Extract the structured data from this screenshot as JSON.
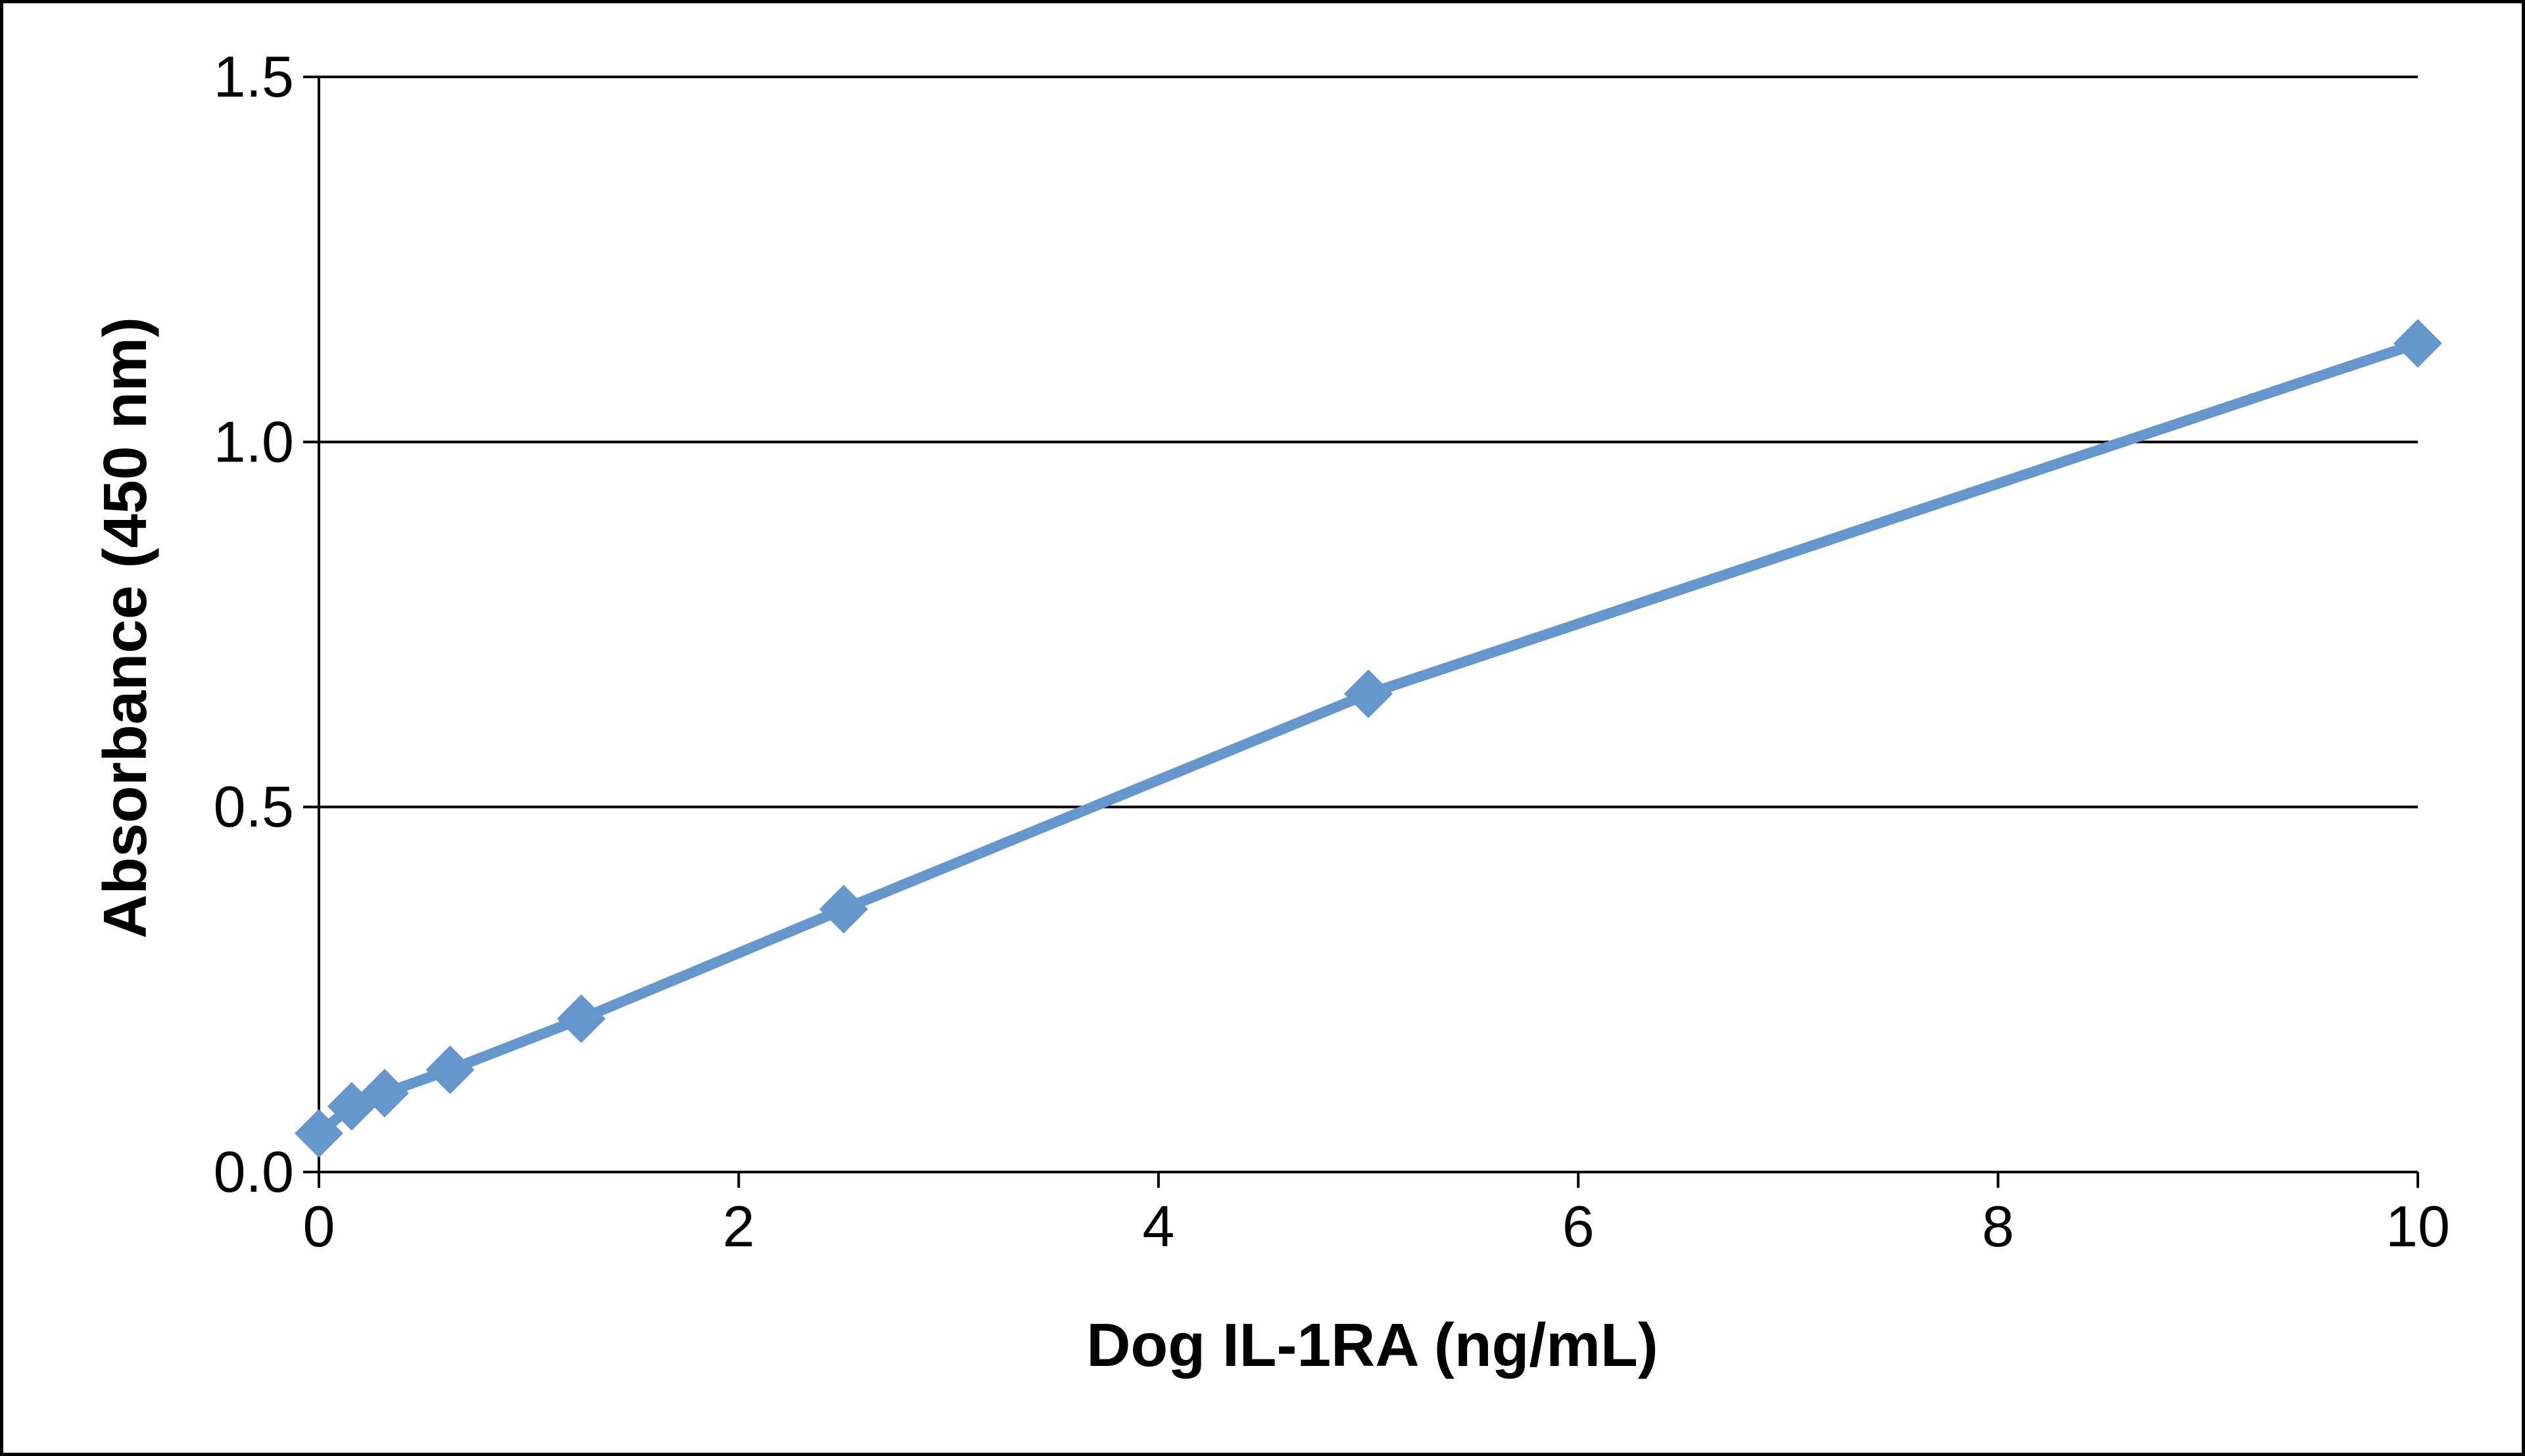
{
  "chart_data": {
    "type": "line",
    "title": "",
    "xlabel": "Dog IL-1RA (ng/mL)",
    "ylabel": "Absorbance  (450 nm)",
    "xlim": [
      0,
      10
    ],
    "ylim": [
      0,
      1.5
    ],
    "x_ticks": [
      0,
      2,
      4,
      6,
      8,
      10
    ],
    "y_ticks": [
      0,
      0.5,
      1.0,
      1.5
    ],
    "x_tick_labels": [
      "0",
      "2",
      "4",
      "6",
      "8",
      "10"
    ],
    "y_tick_labels": [
      "0.0",
      "0.5",
      "1.0",
      "1.5"
    ],
    "grid": {
      "horizontal": true,
      "vertical": false
    },
    "legend": "none",
    "series": [
      {
        "color": "#6597CD",
        "marker": "diamond",
        "x": [
          0,
          0.156,
          0.313,
          0.625,
          1.25,
          2.5,
          5,
          10
        ],
        "y": [
          0.053,
          0.09,
          0.108,
          0.14,
          0.21,
          0.36,
          0.655,
          1.135
        ]
      }
    ]
  }
}
